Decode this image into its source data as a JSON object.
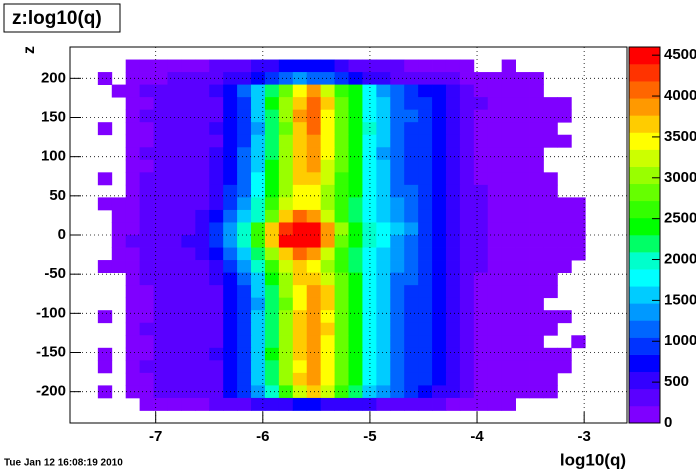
{
  "chart_data": {
    "type": "heatmap",
    "title": "z:log10(q)",
    "x_label": "log10(q)",
    "y_label": "z",
    "timestamp": "Tue Jan 12 16:08:19 2010",
    "xlim": [
      -7.8,
      -2.6
    ],
    "ylim": [
      -240,
      240
    ],
    "xticks": [
      -7,
      -6,
      -5,
      -4,
      -3
    ],
    "yticks": [
      -200,
      -150,
      -100,
      -50,
      0,
      50,
      100,
      150,
      200
    ],
    "zlim": [
      0,
      4600
    ],
    "zticks": [
      0,
      500,
      1000,
      1500,
      2000,
      2500,
      3000,
      3500,
      4000,
      4500
    ],
    "grid": true,
    "colors": [
      "#7f00ff",
      "#5a00ff",
      "#3300ff",
      "#0000ff",
      "#0033ff",
      "#0066ff",
      "#0099ff",
      "#00ccff",
      "#00ffff",
      "#00ffcc",
      "#00ff66",
      "#00ff00",
      "#33ff00",
      "#66ff00",
      "#99ff00",
      "#ccff00",
      "#ffff00",
      "#ffcc00",
      "#ff9900",
      "#ff6600",
      "#ff3300",
      "#ff0000"
    ],
    "z": [
      [
        null,
        null,
        null,
        null,
        null,
        null,
        null,
        null,
        null,
        null,
        null,
        null,
        null,
        null,
        null,
        null,
        null,
        null,
        null,
        null,
        null,
        null,
        null,
        null,
        null,
        null,
        null,
        null,
        null,
        null,
        null,
        null,
        null,
        null,
        null,
        null,
        null,
        null,
        null,
        null
      ],
      [
        null,
        null,
        null,
        null,
        150,
        160,
        170,
        180,
        190,
        200,
        220,
        300,
        400,
        500,
        600,
        700,
        800,
        750,
        700,
        600,
        400,
        300,
        250,
        220,
        200,
        180,
        170,
        160,
        150,
        null,
        null,
        150,
        null,
        null,
        null,
        null,
        null,
        null,
        null,
        null
      ],
      [
        null,
        null,
        150,
        null,
        160,
        180,
        200,
        210,
        220,
        240,
        300,
        450,
        600,
        800,
        1000,
        1200,
        1300,
        1250,
        1100,
        900,
        700,
        550,
        450,
        380,
        320,
        280,
        240,
        210,
        190,
        170,
        160,
        150,
        140,
        130,
        null,
        null,
        null,
        null,
        null,
        null
      ],
      [
        null,
        null,
        null,
        150,
        170,
        210,
        230,
        250,
        260,
        290,
        420,
        750,
        1050,
        1600,
        2200,
        2900,
        3500,
        3800,
        3300,
        2700,
        2300,
        1700,
        1400,
        1150,
        950,
        800,
        650,
        480,
        300,
        200,
        180,
        170,
        160,
        150,
        null,
        null,
        null,
        null,
        null,
        null
      ],
      [
        null,
        null,
        null,
        null,
        160,
        200,
        220,
        240,
        260,
        280,
        410,
        720,
        1020,
        1550,
        2300,
        3100,
        3700,
        4000,
        3600,
        2900,
        2500,
        1800,
        1500,
        1200,
        1000,
        850,
        700,
        500,
        310,
        210,
        180,
        170,
        160,
        150,
        140,
        130,
        null,
        null,
        null,
        null
      ],
      [
        null,
        null,
        null,
        null,
        150,
        210,
        230,
        250,
        250,
        290,
        400,
        700,
        1000,
        1500,
        2200,
        3000,
        3800,
        4100,
        3500,
        2800,
        2400,
        1800,
        1500,
        1250,
        1050,
        900,
        720,
        520,
        320,
        200,
        190,
        170,
        160,
        150,
        140,
        130,
        null,
        null,
        null,
        null
      ],
      [
        null,
        null,
        150,
        null,
        160,
        200,
        220,
        250,
        260,
        280,
        420,
        700,
        980,
        1450,
        2100,
        2900,
        3700,
        4000,
        3400,
        2800,
        2500,
        1900,
        1550,
        1200,
        1000,
        850,
        700,
        500,
        300,
        200,
        180,
        170,
        160,
        150,
        140,
        null,
        null,
        null,
        null,
        null
      ],
      [
        null,
        null,
        null,
        null,
        150,
        200,
        230,
        240,
        250,
        290,
        400,
        680,
        1000,
        1500,
        2200,
        3000,
        3600,
        3900,
        3500,
        2900,
        2500,
        1800,
        1500,
        1200,
        1000,
        850,
        700,
        500,
        300,
        200,
        180,
        170,
        160,
        150,
        140,
        130,
        null,
        null,
        null,
        null
      ],
      [
        null,
        null,
        null,
        null,
        160,
        210,
        220,
        240,
        260,
        280,
        430,
        720,
        1050,
        1550,
        2250,
        3100,
        3700,
        3900,
        3400,
        2800,
        2400,
        1750,
        1450,
        1200,
        1000,
        850,
        700,
        500,
        300,
        200,
        180,
        170,
        160,
        150,
        null,
        null,
        null,
        null,
        null,
        null
      ],
      [
        null,
        null,
        null,
        null,
        150,
        200,
        230,
        250,
        250,
        290,
        450,
        750,
        1100,
        1600,
        2300,
        3000,
        3600,
        3800,
        3300,
        2800,
        2400,
        1800,
        1500,
        1200,
        1000,
        850,
        700,
        500,
        300,
        200,
        180,
        170,
        160,
        150,
        null,
        null,
        null,
        null,
        null,
        null
      ],
      [
        null,
        null,
        150,
        null,
        160,
        210,
        230,
        250,
        270,
        300,
        480,
        800,
        1150,
        1700,
        2400,
        3100,
        3600,
        3700,
        3200,
        2700,
        2300,
        1800,
        1500,
        1200,
        1000,
        850,
        700,
        500,
        300,
        200,
        180,
        170,
        160,
        150,
        140,
        null,
        null,
        null,
        null,
        null
      ],
      [
        null,
        null,
        null,
        null,
        170,
        220,
        240,
        260,
        280,
        320,
        520,
        850,
        1250,
        1800,
        2500,
        3100,
        3500,
        3500,
        3100,
        2700,
        2300,
        1800,
        1500,
        1250,
        1050,
        880,
        720,
        520,
        320,
        210,
        190,
        170,
        160,
        150,
        140,
        null,
        null,
        null,
        null,
        null
      ],
      [
        null,
        null,
        150,
        150,
        180,
        230,
        260,
        280,
        300,
        350,
        600,
        950,
        1400,
        2000,
        2700,
        3200,
        3500,
        3400,
        3000,
        2600,
        2200,
        1800,
        1550,
        1300,
        1100,
        900,
        750,
        550,
        330,
        220,
        190,
        180,
        170,
        160,
        150,
        140,
        130,
        null,
        null,
        null
      ],
      [
        null,
        null,
        null,
        150,
        200,
        240,
        280,
        320,
        380,
        500,
        800,
        1100,
        1500,
        2000,
        2900,
        3600,
        4000,
        3800,
        3300,
        2700,
        2200,
        1800,
        1600,
        1400,
        1200,
        950,
        750,
        550,
        320,
        210,
        180,
        170,
        160,
        150,
        140,
        130,
        120,
        null,
        null,
        null
      ],
      [
        null,
        null,
        null,
        150,
        200,
        250,
        300,
        350,
        400,
        600,
        900,
        1300,
        1900,
        2600,
        3600,
        4300,
        4550,
        4500,
        3900,
        3000,
        2400,
        2000,
        1700,
        1500,
        1300,
        1000,
        800,
        600,
        350,
        220,
        190,
        170,
        160,
        150,
        140,
        130,
        120,
        null,
        null,
        null
      ],
      [
        null,
        null,
        null,
        150,
        210,
        260,
        310,
        360,
        420,
        620,
        950,
        1350,
        1950,
        2700,
        3700,
        4400,
        4600,
        4550,
        3800,
        2900,
        2300,
        1950,
        1700,
        1450,
        1250,
        1000,
        800,
        600,
        340,
        220,
        190,
        170,
        160,
        150,
        140,
        130,
        120,
        null,
        null,
        null
      ],
      [
        null,
        null,
        null,
        150,
        200,
        240,
        280,
        320,
        380,
        500,
        800,
        1100,
        1500,
        2100,
        3000,
        3700,
        4100,
        3900,
        3300,
        2700,
        2200,
        1800,
        1600,
        1400,
        1200,
        950,
        750,
        550,
        320,
        210,
        180,
        170,
        160,
        150,
        140,
        130,
        120,
        null,
        null,
        null
      ],
      [
        null,
        null,
        150,
        150,
        180,
        230,
        260,
        280,
        300,
        350,
        580,
        920,
        1350,
        1950,
        2700,
        3300,
        3600,
        3500,
        3100,
        2600,
        2200,
        1800,
        1550,
        1300,
        1100,
        900,
        750,
        550,
        330,
        220,
        190,
        180,
        170,
        160,
        150,
        140,
        null,
        null,
        null,
        null
      ],
      [
        null,
        null,
        null,
        null,
        160,
        210,
        230,
        250,
        260,
        290,
        430,
        730,
        1050,
        1550,
        2300,
        3100,
        3600,
        3700,
        3300,
        2800,
        2400,
        1800,
        1500,
        1250,
        1050,
        880,
        720,
        520,
        310,
        200,
        180,
        170,
        160,
        150,
        140,
        null,
        null,
        null,
        null,
        null
      ],
      [
        null,
        null,
        null,
        null,
        150,
        200,
        220,
        240,
        250,
        280,
        400,
        700,
        1000,
        1500,
        2200,
        3000,
        3500,
        3800,
        3600,
        2900,
        2500,
        1800,
        1500,
        1200,
        1000,
        850,
        700,
        500,
        300,
        200,
        180,
        170,
        160,
        150,
        140,
        null,
        null,
        null,
        null,
        null
      ],
      [
        null,
        null,
        null,
        null,
        160,
        200,
        230,
        240,
        260,
        290,
        410,
        700,
        1000,
        1450,
        2150,
        2900,
        3500,
        3900,
        3700,
        2900,
        2400,
        1800,
        1500,
        1200,
        1000,
        850,
        700,
        500,
        300,
        200,
        180,
        170,
        160,
        150,
        null,
        null,
        null,
        null,
        null,
        null
      ],
      [
        null,
        null,
        150,
        null,
        150,
        200,
        220,
        250,
        250,
        280,
        400,
        690,
        990,
        1500,
        2200,
        3000,
        3600,
        3800,
        3500,
        2800,
        2400,
        1800,
        1500,
        1200,
        1000,
        850,
        700,
        500,
        300,
        200,
        180,
        170,
        160,
        150,
        140,
        130,
        null,
        null,
        null,
        null
      ],
      [
        null,
        null,
        null,
        null,
        160,
        210,
        220,
        240,
        260,
        280,
        410,
        710,
        1010,
        1520,
        2250,
        3050,
        3600,
        3900,
        3600,
        2900,
        2500,
        1800,
        1500,
        1200,
        1000,
        850,
        700,
        500,
        300,
        200,
        180,
        170,
        160,
        150,
        140,
        null,
        null,
        null,
        null,
        null
      ],
      [
        null,
        null,
        null,
        null,
        150,
        200,
        230,
        250,
        250,
        290,
        400,
        700,
        1000,
        1500,
        2200,
        3000,
        3700,
        3800,
        3500,
        2800,
        2400,
        1800,
        1500,
        1200,
        1000,
        850,
        700,
        500,
        300,
        200,
        180,
        170,
        160,
        150,
        null,
        null,
        140,
        null,
        null,
        null
      ],
      [
        null,
        null,
        150,
        null,
        160,
        200,
        220,
        240,
        260,
        280,
        420,
        720,
        1020,
        1550,
        2300,
        3100,
        3600,
        3900,
        3400,
        2800,
        2400,
        1800,
        1500,
        1200,
        1000,
        850,
        700,
        500,
        300,
        200,
        180,
        170,
        160,
        150,
        140,
        130,
        null,
        null,
        null,
        null
      ],
      [
        null,
        null,
        150,
        null,
        150,
        210,
        230,
        250,
        250,
        290,
        410,
        700,
        1000,
        1500,
        2200,
        3000,
        3500,
        3800,
        3500,
        2900,
        2500,
        1800,
        1500,
        1200,
        1000,
        850,
        700,
        500,
        300,
        200,
        180,
        170,
        160,
        150,
        140,
        130,
        null,
        null,
        null,
        null
      ],
      [
        null,
        null,
        null,
        null,
        160,
        200,
        220,
        240,
        260,
        280,
        400,
        700,
        1000,
        1500,
        2200,
        3000,
        3600,
        3900,
        3500,
        2800,
        2400,
        1800,
        1500,
        1200,
        1000,
        850,
        700,
        500,
        300,
        200,
        180,
        170,
        160,
        150,
        140,
        null,
        null,
        null,
        null,
        null
      ],
      [
        null,
        null,
        150,
        null,
        150,
        200,
        210,
        230,
        240,
        270,
        380,
        650,
        950,
        1400,
        2000,
        2700,
        3300,
        3700,
        3300,
        2600,
        2200,
        1600,
        1400,
        1100,
        900,
        750,
        600,
        450,
        280,
        190,
        170,
        160,
        150,
        140,
        130,
        null,
        null,
        null,
        null,
        null
      ],
      [
        null,
        null,
        null,
        null,
        null,
        150,
        160,
        170,
        180,
        190,
        220,
        300,
        400,
        500,
        550,
        600,
        650,
        650,
        600,
        550,
        500,
        450,
        400,
        350,
        300,
        260,
        230,
        200,
        180,
        160,
        150,
        140,
        null,
        null,
        null,
        null,
        null,
        null,
        null,
        null
      ],
      [
        null,
        null,
        null,
        null,
        null,
        null,
        null,
        null,
        null,
        null,
        null,
        null,
        null,
        null,
        null,
        null,
        null,
        null,
        null,
        null,
        null,
        null,
        null,
        null,
        null,
        null,
        null,
        null,
        null,
        null,
        null,
        null,
        null,
        null,
        null,
        null,
        null,
        null,
        null,
        null
      ]
    ]
  }
}
